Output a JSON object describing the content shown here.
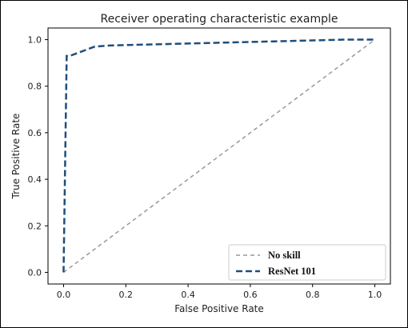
{
  "chart_data": {
    "type": "line",
    "title": "Receiver operating characteristic example",
    "xlabel": "False Positive Rate",
    "ylabel": "True Positive Rate",
    "xlim": [
      -0.05,
      1.05
    ],
    "ylim": [
      -0.05,
      1.05
    ],
    "xticks": [
      0.0,
      0.2,
      0.4,
      0.6,
      0.8,
      1.0
    ],
    "yticks": [
      0.0,
      0.2,
      0.4,
      0.6,
      0.8,
      1.0
    ],
    "xtick_labels": [
      "0.0",
      "0.2",
      "0.4",
      "0.6",
      "0.8",
      "1.0"
    ],
    "ytick_labels": [
      "0.0",
      "0.2",
      "0.4",
      "0.6",
      "0.8",
      "1.0"
    ],
    "grid": false,
    "legend_position": "bottom-right",
    "series": [
      {
        "name": "No skill",
        "color": "#999999",
        "style": "dashed",
        "x": [
          0.0,
          1.0
        ],
        "y": [
          0.0,
          1.0
        ]
      },
      {
        "name": "ResNet 101",
        "color": "#1f4e79",
        "style": "dashed",
        "x": [
          0.0,
          0.01,
          0.02,
          0.1,
          0.15,
          0.3,
          0.6,
          0.9,
          1.0
        ],
        "y": [
          0.0,
          0.93,
          0.93,
          0.97,
          0.975,
          0.98,
          0.99,
          1.0,
          1.0
        ]
      }
    ]
  }
}
